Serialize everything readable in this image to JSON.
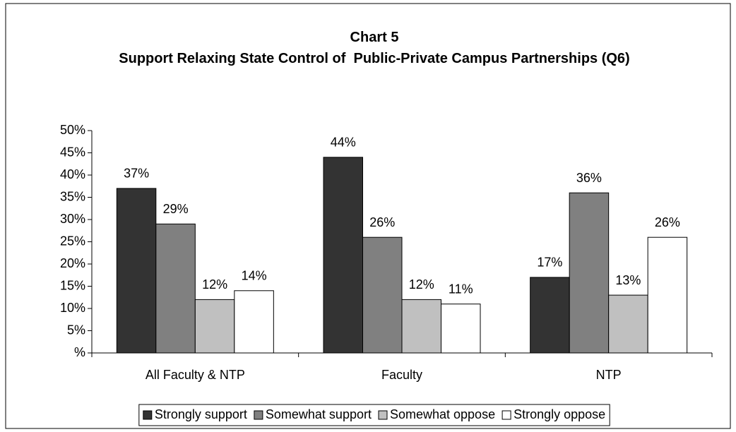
{
  "chart_data": {
    "type": "bar",
    "title": "Chart 5",
    "subtitle": "Support Relaxing State Control of  Public-Private Campus Partnerships (Q6)",
    "categories": [
      "All Faculty & NTP",
      "Faculty",
      "NTP"
    ],
    "series": [
      {
        "name": "Strongly support",
        "color": "#333333",
        "values": [
          37,
          44,
          17
        ],
        "value_labels": [
          "37%",
          "44%",
          "17%"
        ]
      },
      {
        "name": "Somewhat support",
        "color": "#808080",
        "values": [
          29,
          26,
          36
        ],
        "value_labels": [
          "29%",
          "26%",
          "36%"
        ]
      },
      {
        "name": "Somewhat oppose",
        "color": "#c0c0c0",
        "values": [
          12,
          12,
          13
        ],
        "value_labels": [
          "12%",
          "12%",
          "13%"
        ]
      },
      {
        "name": "Strongly oppose",
        "color": "#ffffff",
        "values": [
          14,
          11,
          26
        ],
        "value_labels": [
          "14%",
          "11%",
          "26%"
        ]
      }
    ],
    "ylim": [
      0,
      50
    ],
    "yticks": [
      {
        "value": 0,
        "label": "%"
      },
      {
        "value": 5,
        "label": "5%"
      },
      {
        "value": 10,
        "label": "10%"
      },
      {
        "value": 15,
        "label": "15%"
      },
      {
        "value": 20,
        "label": "20%"
      },
      {
        "value": 25,
        "label": "25%"
      },
      {
        "value": 30,
        "label": "30%"
      },
      {
        "value": 35,
        "label": "35%"
      },
      {
        "value": 40,
        "label": "40%"
      },
      {
        "value": 45,
        "label": "45%"
      },
      {
        "value": 50,
        "label": "50%"
      }
    ],
    "legend": "bottom"
  }
}
